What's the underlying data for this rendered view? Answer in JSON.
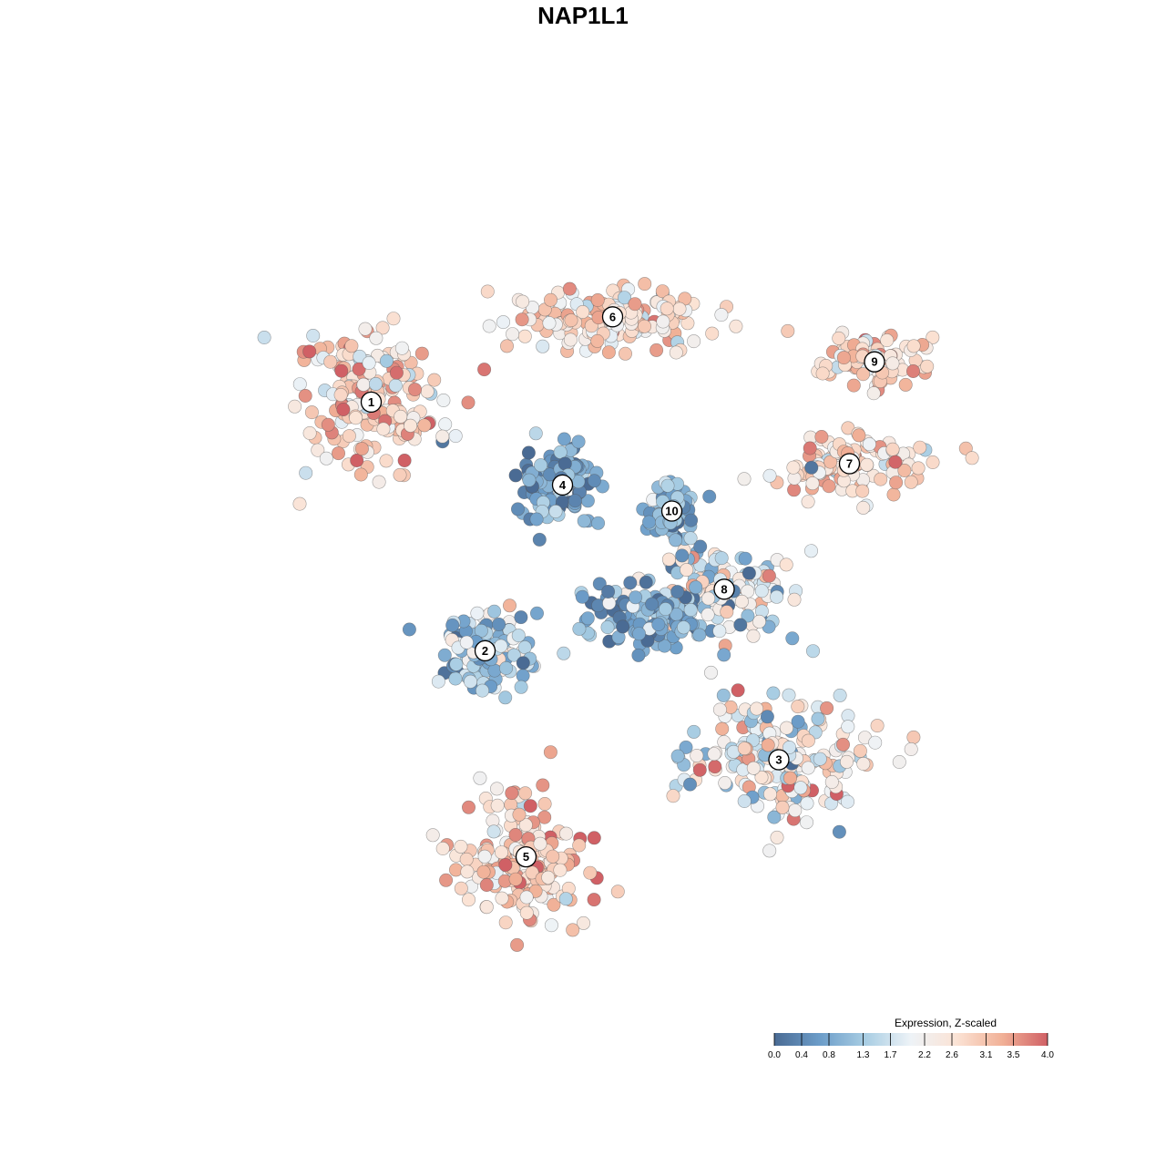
{
  "chart_data": {
    "type": "scatter",
    "title": "NAP1L1",
    "xlabel": "",
    "ylabel": "",
    "grid": false,
    "axes_visible": false,
    "color_scale": {
      "title": "Expression, Z-scaled",
      "min": 0.0,
      "max": 4.0,
      "stops": [
        "#4a6b94",
        "#6c9dc9",
        "#a8cde3",
        "#eef3f7",
        "#fbe3d5",
        "#f1b197",
        "#d06065"
      ],
      "ticks": [
        0.0,
        0.4,
        0.8,
        1.3,
        1.7,
        2.2,
        2.6,
        3.1,
        3.5,
        4.0
      ],
      "tick_labels": [
        "0.0",
        "0.4",
        "0.8",
        "1.3",
        "1.7",
        "2.2",
        "2.6",
        "3.1",
        "3.5",
        "4.0"
      ],
      "placement": "bottom-right"
    },
    "clusters": [
      {
        "label": "1",
        "x": -9.3,
        "y": 6.1,
        "spread_x": 2.9,
        "spread_y": 2.6,
        "mean_expr": 2.75,
        "sd_expr": 0.65
      },
      {
        "label": "2",
        "x": -4.3,
        "y": -4.4,
        "spread_x": 1.9,
        "spread_y": 1.4,
        "mean_expr": 1.2,
        "sd_expr": 0.75
      },
      {
        "label": "3",
        "x": 8.6,
        "y": -9.0,
        "spread_x": 3.4,
        "spread_y": 2.4,
        "mean_expr": 2.1,
        "sd_expr": 0.8
      },
      {
        "label": "4",
        "x": -0.9,
        "y": 2.6,
        "spread_x": 1.6,
        "spread_y": 1.6,
        "mean_expr": 0.75,
        "sd_expr": 0.45
      },
      {
        "label": "5",
        "x": -2.5,
        "y": -13.1,
        "spread_x": 2.6,
        "spread_y": 2.6,
        "mean_expr": 2.9,
        "sd_expr": 0.6
      },
      {
        "label": "6",
        "x": 1.3,
        "y": 9.7,
        "spread_x": 4.2,
        "spread_y": 1.2,
        "mean_expr": 2.6,
        "sd_expr": 0.6
      },
      {
        "label": "7",
        "x": 11.7,
        "y": 3.5,
        "spread_x": 3.3,
        "spread_y": 1.1,
        "mean_expr": 2.6,
        "sd_expr": 0.6
      },
      {
        "label": "8",
        "x": 6.2,
        "y": -1.8,
        "spread_x": 2.8,
        "spread_y": 1.6,
        "mean_expr": 2.0,
        "sd_expr": 0.8
      },
      {
        "label": "9",
        "x": 12.8,
        "y": 7.8,
        "spread_x": 2.0,
        "spread_y": 0.9,
        "mean_expr": 2.8,
        "sd_expr": 0.55
      },
      {
        "label": "10",
        "x": 3.9,
        "y": 1.5,
        "spread_x": 0.9,
        "spread_y": 1.1,
        "mean_expr": 0.9,
        "sd_expr": 0.5
      },
      {
        "label": "",
        "x": 2.7,
        "y": -2.9,
        "spread_x": 2.7,
        "spread_y": 1.2,
        "mean_expr": 0.7,
        "sd_expr": 0.6
      }
    ]
  }
}
